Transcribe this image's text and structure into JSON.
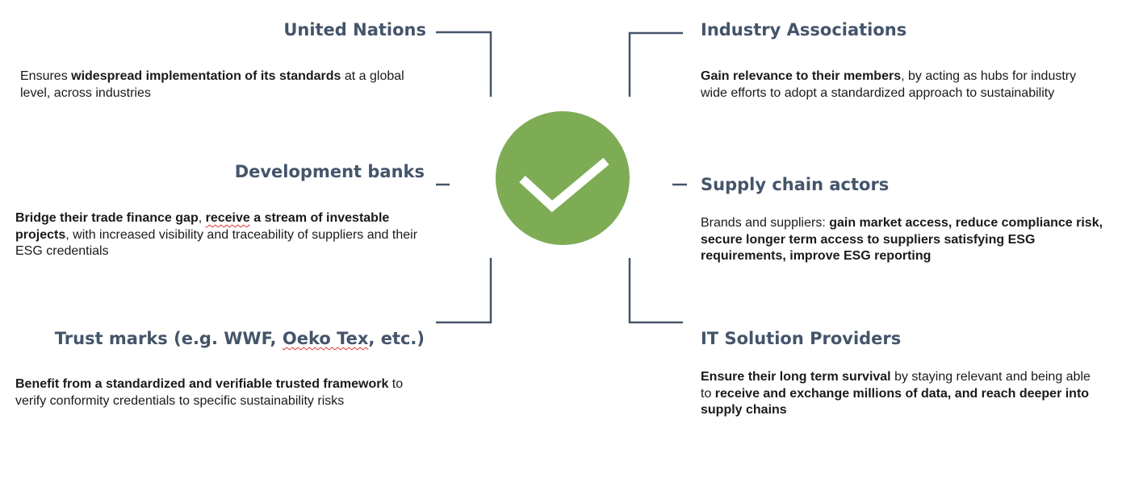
{
  "center": {
    "icon": "checkmark-circle-icon",
    "circle_color": "#7dac55",
    "check_color": "#ffffff"
  },
  "accent": {
    "heading_color": "#44546a",
    "line_color": "#44546a"
  },
  "united_nations": {
    "title": "United Nations",
    "pre": "Ensures ",
    "bold": "widespread implementation of its standards",
    "post": " at a global level, across industries"
  },
  "development_banks": {
    "title": "Development banks",
    "bold1": "Bridge their trade finance gap",
    "sep": ", ",
    "bold2_word": "receive",
    "bold2_rest": " a stream of investable projects",
    "post": ", with increased visibility and traceability of suppliers and their ESG credentials"
  },
  "trust_marks": {
    "title_pre": "Trust marks (e.g. WWF, ",
    "title_squiggle": "Oeko Tex",
    "title_post": ", etc.)",
    "bold": "Benefit from a standardized and verifiable trusted framework",
    "post": " to verify conformity credentials to specific sustainability risks"
  },
  "industry_associations": {
    "title": "Industry Associations",
    "bold": "Gain relevance to their members",
    "post": ", by acting as hubs for industry wide efforts to adopt a standardized approach to sustainability"
  },
  "supply_chain": {
    "title": "Supply chain actors",
    "pre": "Brands and suppliers: ",
    "bold": "gain market access, reduce compliance risk, secure longer term access to suppliers satisfying ESG requirements, improve ESG reporting"
  },
  "it_providers": {
    "title": "IT Solution Providers",
    "bold1": "Ensure their long term survival",
    "mid": " by staying relevant and being able to ",
    "bold2": "receive and exchange millions of data, and reach deeper into supply chains"
  }
}
